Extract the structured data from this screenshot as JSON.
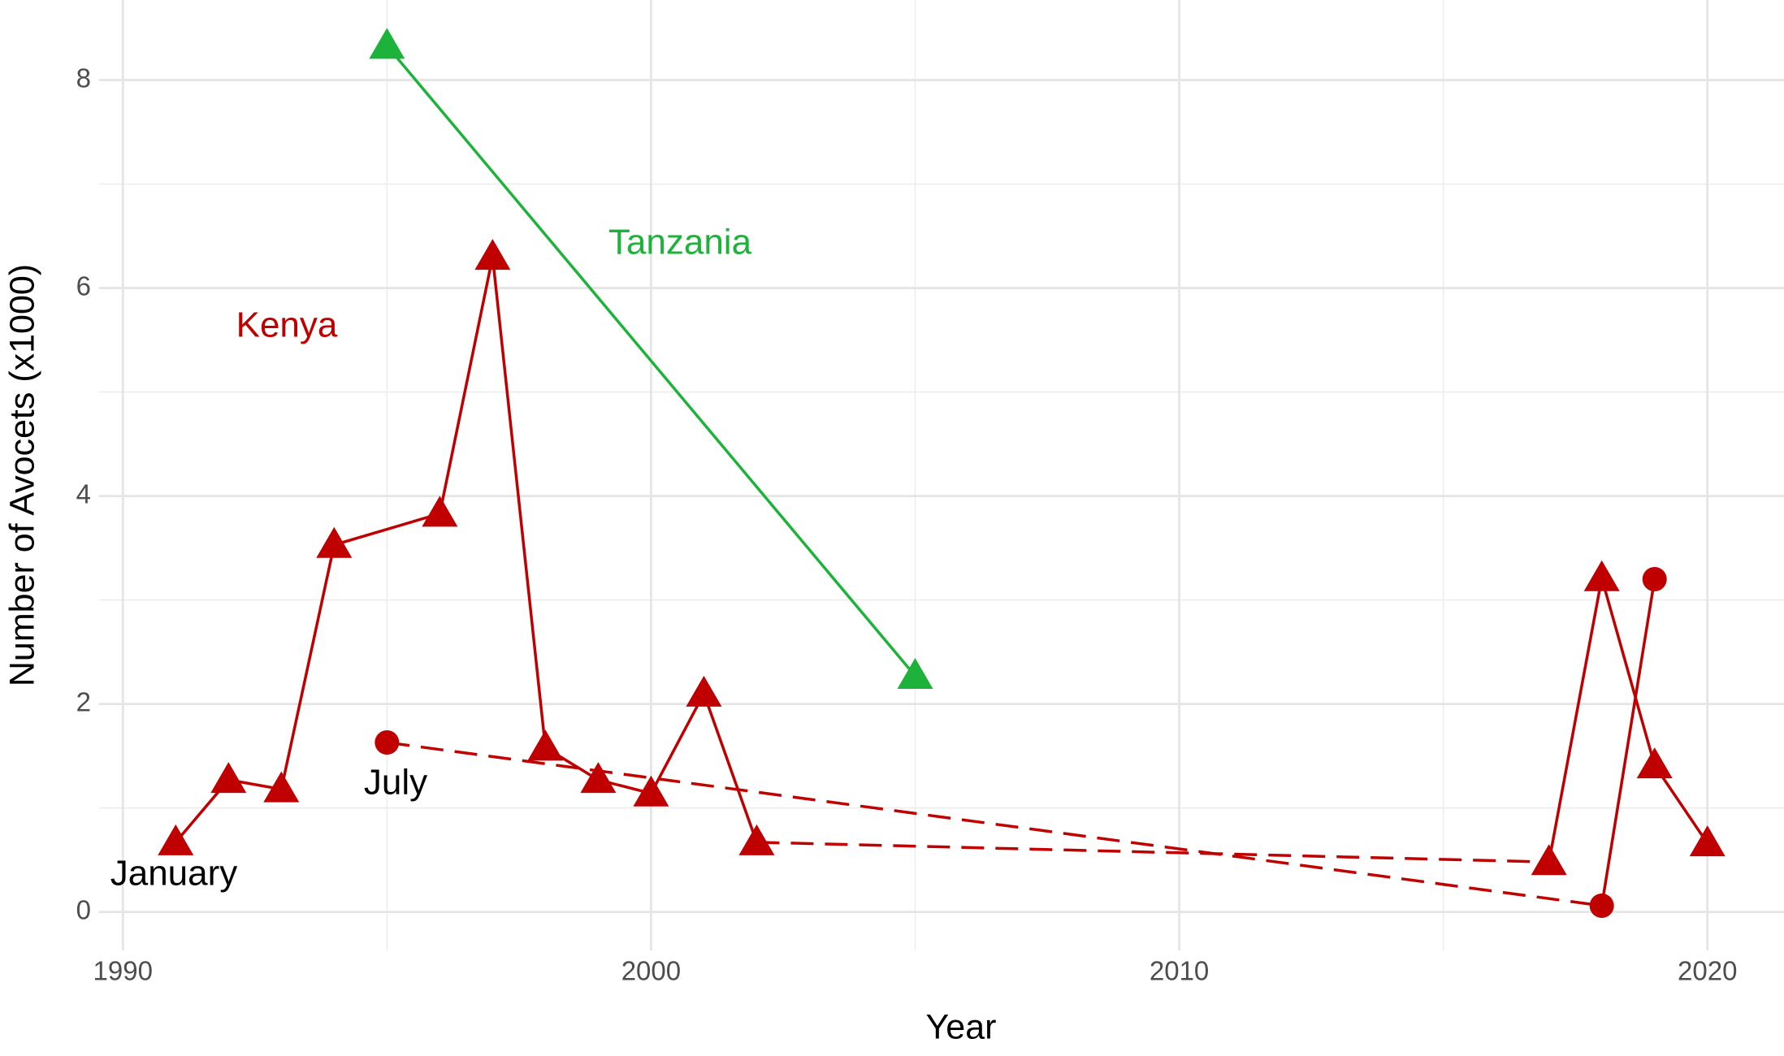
{
  "chart_data": {
    "type": "line",
    "xlabel": "Year",
    "ylabel": "Number of Avocets (x1000)",
    "xlim": [
      1989.55,
      2021.45
    ],
    "ylim": [
      -0.37,
      8.77
    ],
    "xticks": [
      1990,
      2000,
      2010,
      2020
    ],
    "yticks": [
      0,
      2,
      4,
      6,
      8
    ],
    "xminor": [
      1995,
      2005,
      2015
    ],
    "yminor": [
      1,
      3,
      5,
      7
    ],
    "grid": true,
    "gap_line": "dashed",
    "series": [
      {
        "name": "January",
        "color": "#c00000",
        "label_color": "#000000",
        "marker": "triangle",
        "x": [
          1991,
          1992,
          1993,
          1994,
          1996,
          1997,
          1998,
          1999,
          2000,
          2001,
          2002,
          2003,
          2017,
          2018,
          2019,
          2020
        ],
        "values": [
          0.67,
          1.27,
          1.18,
          3.53,
          3.83,
          6.3,
          1.58,
          1.27,
          1.14,
          2.1,
          0.67,
          null,
          0.48,
          3.21,
          1.41,
          0.66
        ]
      },
      {
        "name": "July",
        "color": "#c00000",
        "label_color": "#000000",
        "marker": "circle",
        "x": [
          1995,
          1996,
          2018,
          2019
        ],
        "values": [
          1.63,
          null,
          0.06,
          3.2
        ]
      },
      {
        "name": "Tanzania",
        "color": "#1db33a",
        "label_color": "#1db33a",
        "marker": "triangle",
        "x": [
          1995,
          2005
        ],
        "values": [
          8.33,
          2.27
        ]
      }
    ],
    "annotations": [
      {
        "text": "Kenya",
        "color": "#c00000"
      }
    ]
  }
}
